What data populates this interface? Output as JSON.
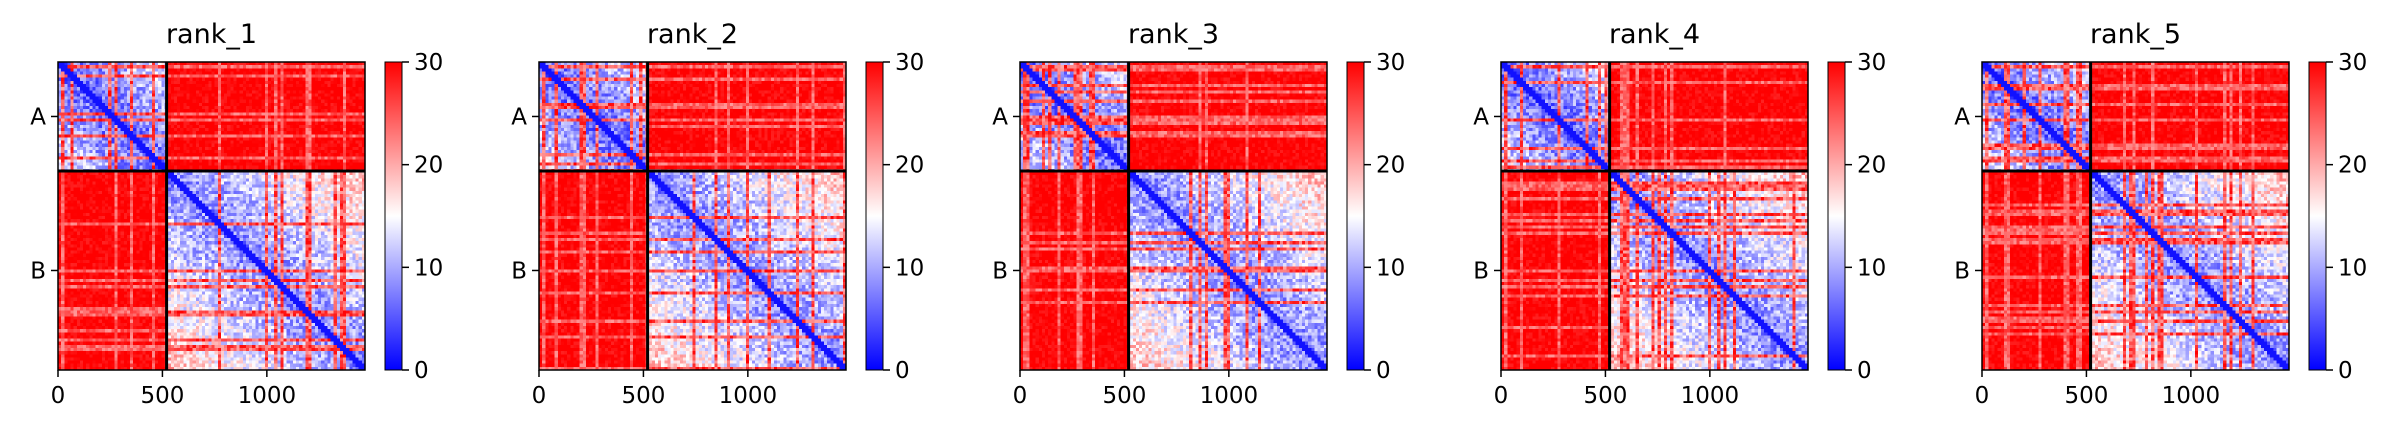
{
  "chart_data": {
    "type": "heatmap",
    "colormap": {
      "name": "bwr",
      "low": "#0000ff",
      "mid": "#ffffff",
      "high": "#ff0000"
    },
    "matrix_size": 1470,
    "chain_boundary": 520,
    "chains": [
      {
        "label": "A",
        "start": 0,
        "end": 520
      },
      {
        "label": "B",
        "start": 520,
        "end": 1470
      }
    ],
    "xticks": [
      0,
      500,
      1000
    ],
    "xtick_labels": [
      "0",
      "500",
      "1000"
    ],
    "colorbar": {
      "ticks": [
        0,
        10,
        20,
        30
      ],
      "tick_labels": [
        "0",
        "10",
        "20",
        "30"
      ],
      "range": [
        0,
        30
      ]
    },
    "panels": [
      {
        "title": "rank_1"
      },
      {
        "title": "rank_2"
      },
      {
        "title": "rank_3"
      },
      {
        "title": "rank_4"
      },
      {
        "title": "rank_5"
      }
    ]
  }
}
